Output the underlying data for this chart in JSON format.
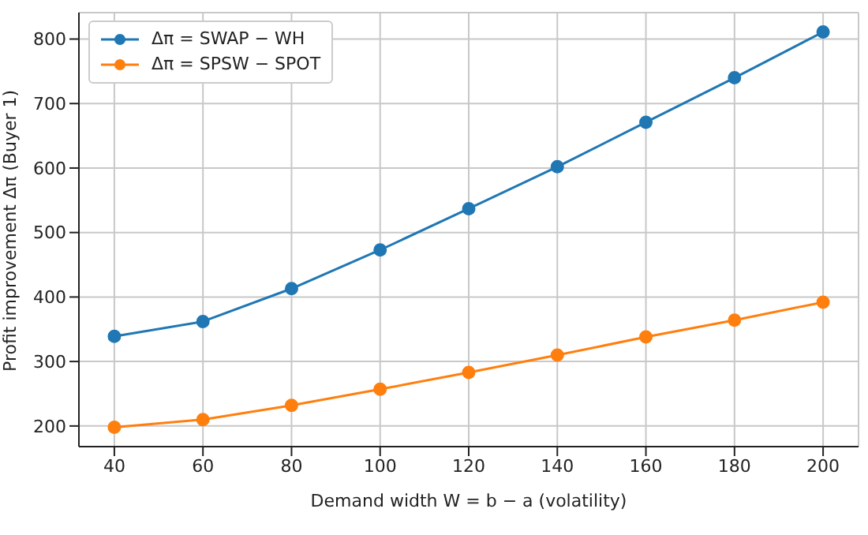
{
  "chart_data": {
    "type": "line",
    "xlabel": "Demand width W = b − a (volatility)",
    "ylabel": "Profit improvement Δπ (Buyer 1)",
    "x": [
      40,
      60,
      80,
      100,
      120,
      140,
      160,
      180,
      200
    ],
    "series": [
      {
        "name": "Δπ = SWAP − WH",
        "color": "#1f77b4",
        "values": [
          339,
          362,
          413,
          473,
          537,
          602,
          671,
          740,
          811
        ]
      },
      {
        "name": "Δπ = SPSW − SPOT",
        "color": "#ff7f0e",
        "values": [
          198,
          210,
          232,
          257,
          283,
          310,
          338,
          364,
          392
        ]
      }
    ],
    "xlim": [
      32,
      208
    ],
    "ylim": [
      168,
      841
    ],
    "xticks": [
      40,
      60,
      80,
      100,
      120,
      140,
      160,
      180,
      200
    ],
    "yticks": [
      200,
      300,
      400,
      500,
      600,
      700,
      800
    ],
    "grid": true,
    "legend": "top left",
    "marker": "circle",
    "line_style": "solid"
  }
}
